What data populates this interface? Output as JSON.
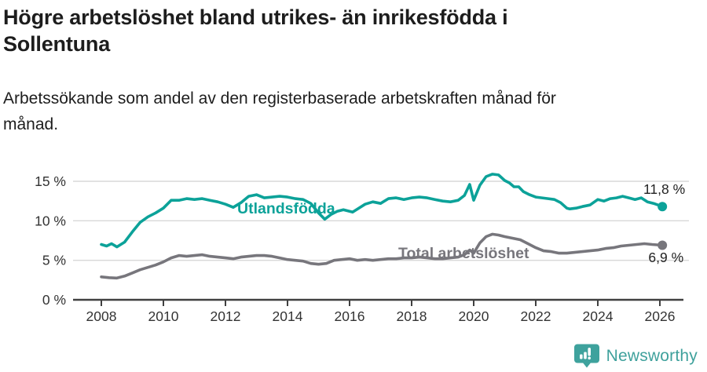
{
  "header": {
    "title": "Högre arbetslöshet bland utrikes- än inrikesfödda i Sollentuna",
    "subtitle": "Arbetssökande som andel av den registerbaserade arbetskraften månad för månad."
  },
  "chart_data": {
    "type": "line",
    "title": "Högre arbetslöshet bland utrikes- än inrikesfödda i Sollentuna",
    "subtitle": "Arbetssökande som andel av den registerbaserade arbetskraften månad för månad.",
    "x_unit": "year (monthly data)",
    "xlim": [
      2007.5,
      2026.8
    ],
    "ylim": [
      0,
      16.5
    ],
    "grid": true,
    "xticks": [
      2008,
      2010,
      2012,
      2014,
      2016,
      2018,
      2020,
      2022,
      2024,
      2026
    ],
    "yticks": [
      0,
      5,
      10,
      15
    ],
    "ytick_labels": [
      "0 %",
      "5 %",
      "10 %",
      "15 %"
    ],
    "colors": {
      "grid": "#d8d8d8",
      "axis": "#404040",
      "tick_text": "#333333",
      "value_text": "#222222"
    },
    "series": [
      {
        "name": "Utlandsfödda",
        "color": "#0ca299",
        "end_label": "11,8 %",
        "end_value": 11.8,
        "label_pos": {
          "x": 2012.38,
          "y": 10.92
        },
        "points": [
          [
            2008.0,
            7.0
          ],
          [
            2008.17,
            6.8
          ],
          [
            2008.33,
            7.1
          ],
          [
            2008.5,
            6.7
          ],
          [
            2008.75,
            7.3
          ],
          [
            2009.0,
            8.6
          ],
          [
            2009.25,
            9.8
          ],
          [
            2009.5,
            10.5
          ],
          [
            2009.75,
            11.0
          ],
          [
            2010.0,
            11.6
          ],
          [
            2010.25,
            12.6
          ],
          [
            2010.5,
            12.6
          ],
          [
            2010.75,
            12.8
          ],
          [
            2011.0,
            12.7
          ],
          [
            2011.25,
            12.8
          ],
          [
            2011.5,
            12.6
          ],
          [
            2011.75,
            12.4
          ],
          [
            2012.0,
            12.1
          ],
          [
            2012.25,
            11.7
          ],
          [
            2012.5,
            12.3
          ],
          [
            2012.75,
            13.1
          ],
          [
            2013.0,
            13.3
          ],
          [
            2013.25,
            12.9
          ],
          [
            2013.5,
            13.0
          ],
          [
            2013.75,
            13.1
          ],
          [
            2014.0,
            13.0
          ],
          [
            2014.25,
            12.8
          ],
          [
            2014.5,
            12.7
          ],
          [
            2014.75,
            12.2
          ],
          [
            2015.0,
            11.0
          ],
          [
            2015.2,
            10.2
          ],
          [
            2015.4,
            10.8
          ],
          [
            2015.6,
            11.2
          ],
          [
            2015.8,
            11.4
          ],
          [
            2016.0,
            11.2
          ],
          [
            2016.1,
            11.1
          ],
          [
            2016.3,
            11.6
          ],
          [
            2016.5,
            12.1
          ],
          [
            2016.75,
            12.4
          ],
          [
            2017.0,
            12.2
          ],
          [
            2017.25,
            12.8
          ],
          [
            2017.5,
            12.9
          ],
          [
            2017.75,
            12.7
          ],
          [
            2018.0,
            12.9
          ],
          [
            2018.25,
            13.0
          ],
          [
            2018.5,
            12.9
          ],
          [
            2018.75,
            12.7
          ],
          [
            2019.0,
            12.5
          ],
          [
            2019.25,
            12.4
          ],
          [
            2019.5,
            12.6
          ],
          [
            2019.7,
            13.2
          ],
          [
            2019.87,
            14.6
          ],
          [
            2020.0,
            12.6
          ],
          [
            2020.2,
            14.5
          ],
          [
            2020.4,
            15.6
          ],
          [
            2020.6,
            15.9
          ],
          [
            2020.8,
            15.8
          ],
          [
            2021.0,
            15.1
          ],
          [
            2021.15,
            14.8
          ],
          [
            2021.3,
            14.3
          ],
          [
            2021.45,
            14.3
          ],
          [
            2021.6,
            13.7
          ],
          [
            2021.8,
            13.3
          ],
          [
            2022.0,
            13.0
          ],
          [
            2022.2,
            12.9
          ],
          [
            2022.4,
            12.8
          ],
          [
            2022.6,
            12.7
          ],
          [
            2022.8,
            12.3
          ],
          [
            2023.0,
            11.6
          ],
          [
            2023.1,
            11.5
          ],
          [
            2023.3,
            11.6
          ],
          [
            2023.5,
            11.8
          ],
          [
            2023.75,
            12.0
          ],
          [
            2024.0,
            12.7
          ],
          [
            2024.2,
            12.5
          ],
          [
            2024.4,
            12.8
          ],
          [
            2024.6,
            12.9
          ],
          [
            2024.8,
            13.1
          ],
          [
            2025.0,
            12.9
          ],
          [
            2025.2,
            12.7
          ],
          [
            2025.4,
            12.9
          ],
          [
            2025.6,
            12.4
          ],
          [
            2025.8,
            12.2
          ],
          [
            2026.08,
            11.8
          ]
        ]
      },
      {
        "name": "Total arbetslöshet",
        "color": "#77767c",
        "end_label": "6,9 %",
        "end_value": 6.9,
        "label_pos": {
          "x": 2017.57,
          "y": 5.26
        },
        "points": [
          [
            2008.0,
            2.9
          ],
          [
            2008.25,
            2.8
          ],
          [
            2008.5,
            2.75
          ],
          [
            2008.75,
            3.0
          ],
          [
            2009.0,
            3.4
          ],
          [
            2009.25,
            3.8
          ],
          [
            2009.5,
            4.1
          ],
          [
            2009.75,
            4.4
          ],
          [
            2010.0,
            4.8
          ],
          [
            2010.25,
            5.3
          ],
          [
            2010.5,
            5.6
          ],
          [
            2010.75,
            5.5
          ],
          [
            2011.0,
            5.6
          ],
          [
            2011.25,
            5.7
          ],
          [
            2011.5,
            5.5
          ],
          [
            2011.75,
            5.4
          ],
          [
            2012.0,
            5.3
          ],
          [
            2012.25,
            5.2
          ],
          [
            2012.5,
            5.4
          ],
          [
            2012.75,
            5.5
          ],
          [
            2013.0,
            5.6
          ],
          [
            2013.25,
            5.6
          ],
          [
            2013.5,
            5.5
          ],
          [
            2013.75,
            5.3
          ],
          [
            2014.0,
            5.1
          ],
          [
            2014.25,
            5.0
          ],
          [
            2014.5,
            4.9
          ],
          [
            2014.75,
            4.6
          ],
          [
            2015.0,
            4.5
          ],
          [
            2015.25,
            4.6
          ],
          [
            2015.5,
            5.0
          ],
          [
            2015.75,
            5.1
          ],
          [
            2016.0,
            5.2
          ],
          [
            2016.25,
            5.0
          ],
          [
            2016.5,
            5.1
          ],
          [
            2016.75,
            5.0
          ],
          [
            2017.0,
            5.1
          ],
          [
            2017.25,
            5.2
          ],
          [
            2017.5,
            5.2
          ],
          [
            2017.75,
            5.3
          ],
          [
            2018.0,
            5.3
          ],
          [
            2018.25,
            5.4
          ],
          [
            2018.5,
            5.3
          ],
          [
            2018.75,
            5.2
          ],
          [
            2019.0,
            5.2
          ],
          [
            2019.25,
            5.3
          ],
          [
            2019.5,
            5.4
          ],
          [
            2019.7,
            5.7
          ],
          [
            2019.87,
            6.3
          ],
          [
            2020.0,
            5.9
          ],
          [
            2020.2,
            7.2
          ],
          [
            2020.4,
            8.0
          ],
          [
            2020.6,
            8.3
          ],
          [
            2020.8,
            8.2
          ],
          [
            2021.0,
            8.0
          ],
          [
            2021.25,
            7.8
          ],
          [
            2021.5,
            7.6
          ],
          [
            2021.75,
            7.1
          ],
          [
            2022.0,
            6.6
          ],
          [
            2022.25,
            6.2
          ],
          [
            2022.5,
            6.1
          ],
          [
            2022.75,
            5.9
          ],
          [
            2023.0,
            5.9
          ],
          [
            2023.25,
            6.0
          ],
          [
            2023.5,
            6.1
          ],
          [
            2023.75,
            6.2
          ],
          [
            2024.0,
            6.3
          ],
          [
            2024.25,
            6.5
          ],
          [
            2024.5,
            6.6
          ],
          [
            2024.75,
            6.8
          ],
          [
            2025.0,
            6.9
          ],
          [
            2025.25,
            7.0
          ],
          [
            2025.5,
            7.1
          ],
          [
            2025.75,
            7.0
          ],
          [
            2026.08,
            6.9
          ]
        ]
      }
    ],
    "legend_position": "inline-labels"
  },
  "footer": {
    "brand": "Newsworthy",
    "brand_color": "#3fa19c",
    "logo_icon": "speech-bubble-bar-chart-icon"
  }
}
